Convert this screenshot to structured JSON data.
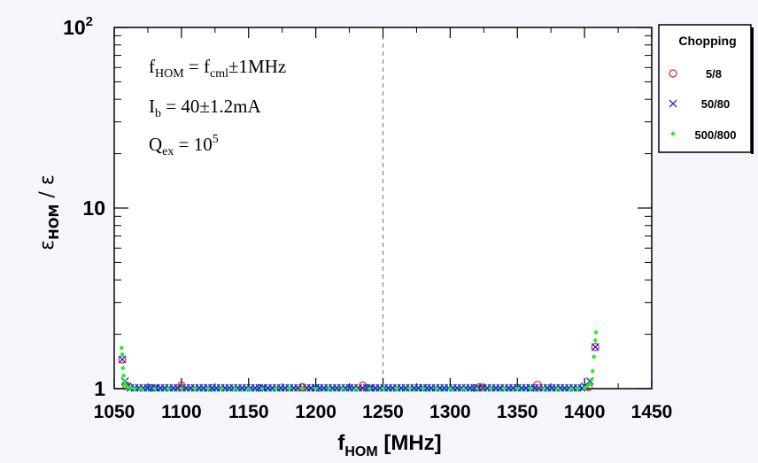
{
  "chart_data": {
    "type": "scatter",
    "xlabel": "f",
    "xlabel_sub": "HOM",
    "xlabel_unit": " [MHz]",
    "ylabel": "ε",
    "ylabel_sub": "HOM",
    "ylabel_tail": " / ε",
    "xlim": [
      1050,
      1450
    ],
    "ylim": [
      1,
      100
    ],
    "yscale": "log",
    "x_ticks": [
      "1050",
      "1100",
      "1150",
      "1200",
      "1250",
      "1300",
      "1350",
      "1400",
      "1450"
    ],
    "y_ticks": [
      {
        "value": 1,
        "base": "1",
        "exp": ""
      },
      {
        "value": 10,
        "base": "10",
        "exp": ""
      },
      {
        "value": 100,
        "base": "10",
        "exp": "2"
      }
    ],
    "grid": "dashed vertical at x=1250",
    "legend": {
      "title": "Chopping",
      "position": "right-outside-top",
      "entries": [
        {
          "label": "5/8",
          "marker": "circle",
          "color": "#e0202a"
        },
        {
          "label": "50/80",
          "marker": "x",
          "color": "#2020e0"
        },
        {
          "label": "500/800",
          "marker": "dot",
          "color": "#22ee22"
        }
      ]
    },
    "annotations": [
      {
        "main": "f",
        "sub": "HOM",
        "rest": " = f",
        "sub2": "cml",
        "tail": "±1MHz"
      },
      {
        "main": "I",
        "sub": "b",
        "rest": " = 40±1.2mA",
        "sub2": "",
        "tail": ""
      },
      {
        "main": "Q",
        "sub": "ex",
        "rest": " = 10",
        "sup": "5",
        "tail": ""
      }
    ],
    "series": [
      {
        "name": "5/8",
        "marker": "circle",
        "color": "#e0202a",
        "x": [
          1056,
          1059,
          1100,
          1190,
          1235,
          1322,
          1365,
          1403,
          1408
        ],
        "y": [
          1.45,
          1.04,
          1.04,
          1.02,
          1.04,
          1.02,
          1.05,
          1.02,
          1.7
        ]
      },
      {
        "name": "50/80",
        "marker": "x",
        "color": "#2020e0",
        "x": [
          1056,
          1058,
          1060,
          1080,
          1120,
          1160,
          1200,
          1240,
          1280,
          1320,
          1360,
          1400,
          1404,
          1408
        ],
        "y": [
          1.45,
          1.1,
          1.03,
          1.01,
          1.01,
          1.01,
          1.01,
          1.01,
          1.01,
          1.01,
          1.01,
          1.03,
          1.1,
          1.7
        ]
      },
      {
        "name": "500/800",
        "marker": "dot",
        "color": "#22ee22",
        "x": [
          1055.5,
          1056,
          1056.5,
          1057,
          1057.5,
          1058,
          1059,
          1060,
          1062,
          1065,
          1070,
          1080,
          1090,
          1100,
          1110,
          1120,
          1130,
          1140,
          1150,
          1160,
          1170,
          1180,
          1190,
          1200,
          1210,
          1220,
          1230,
          1240,
          1250,
          1260,
          1270,
          1280,
          1290,
          1300,
          1310,
          1320,
          1330,
          1340,
          1350,
          1360,
          1370,
          1380,
          1390,
          1395,
          1400,
          1402,
          1404,
          1405,
          1406,
          1407,
          1408,
          1408.5
        ],
        "y": [
          1.68,
          1.55,
          1.3,
          1.18,
          1.1,
          1.06,
          1.03,
          1.02,
          1.01,
          1.0,
          1.0,
          1.0,
          1.0,
          1.0,
          1.0,
          1.0,
          1.0,
          1.0,
          1.0,
          1.0,
          1.0,
          1.0,
          1.0,
          1.0,
          1.0,
          1.0,
          1.0,
          1.0,
          1.0,
          1.0,
          1.0,
          1.0,
          1.0,
          1.0,
          1.0,
          1.0,
          1.0,
          1.0,
          1.0,
          1.0,
          1.0,
          1.0,
          1.0,
          1.0,
          1.01,
          1.03,
          1.06,
          1.12,
          1.25,
          1.5,
          1.85,
          2.05
        ]
      }
    ]
  }
}
